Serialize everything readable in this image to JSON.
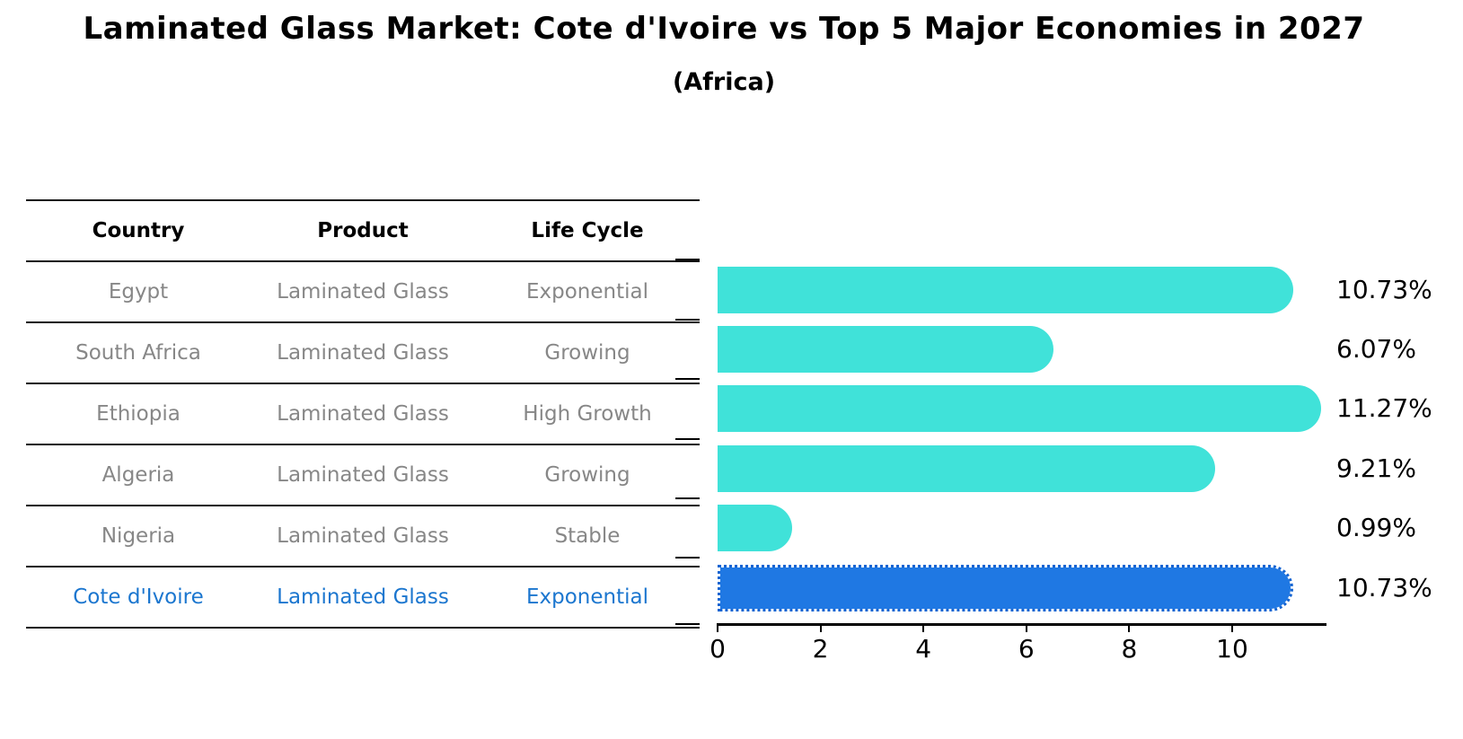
{
  "table": {
    "headers": [
      "Country",
      "Product",
      "Life Cycle"
    ],
    "rows": [
      {
        "country": "Egypt",
        "product": "Laminated Glass",
        "life_cycle": "Exponential"
      },
      {
        "country": "South Africa",
        "product": "Laminated Glass",
        "life_cycle": "Growing"
      },
      {
        "country": "Ethiopia",
        "product": "Laminated Glass",
        "life_cycle": "High Growth"
      },
      {
        "country": "Algeria",
        "product": "Laminated Glass",
        "life_cycle": "Growing"
      },
      {
        "country": "Nigeria",
        "product": "Laminated Glass",
        "life_cycle": "Stable"
      },
      {
        "country": "Cote d'Ivoire",
        "product": "Laminated Glass",
        "life_cycle": "Exponential"
      }
    ],
    "highlight_row_color": "#1B76CF",
    "row_text_color": "#878787"
  },
  "chart_data": {
    "type": "bar",
    "orientation": "horizontal",
    "title": "Laminated Glass Market: Cote d'Ivoire vs Top 5 Major Economies in 2027",
    "subtitle": "(Africa)",
    "categories": [
      "Egypt",
      "South Africa",
      "Ethiopia",
      "Algeria",
      "Nigeria",
      "Cote d'Ivoire"
    ],
    "values": [
      10.73,
      6.07,
      11.27,
      9.21,
      0.99,
      10.73
    ],
    "value_labels": [
      "10.73%",
      "6.07%",
      "11.27%",
      "9.21%",
      "0.99%",
      "10.73%"
    ],
    "unit": "%",
    "highlight_index": 5,
    "bar_color": "#40E2D9",
    "highlight_bar_color": "#1F78E3",
    "x_ticks": [
      0,
      2,
      4,
      6,
      8,
      10
    ],
    "xlim": [
      0,
      11.83
    ],
    "grid": false,
    "legend": "none",
    "xlabel": "",
    "ylabel": ""
  }
}
